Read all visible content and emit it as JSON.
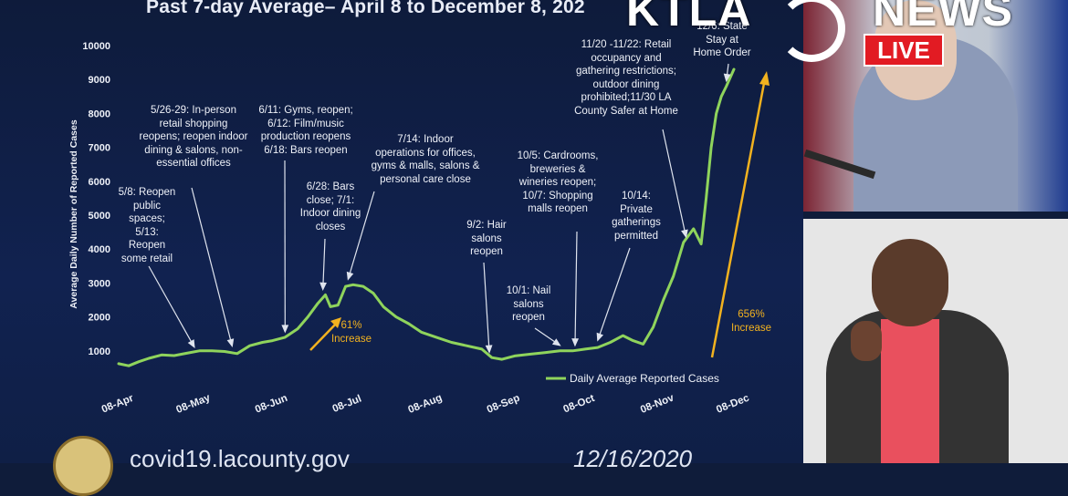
{
  "slide": {
    "title": "Past 7-day Average– April 8 to December 8, 202",
    "footer_url": "covid19.lacounty.gov",
    "footer_date": "12/16/2020"
  },
  "broadcast": {
    "brand": "KTLA",
    "brand_suffix": "NEWS",
    "live": "LIVE"
  },
  "colors": {
    "series": "#8fd45c",
    "increase": "#f2b21f",
    "axis_text": "#eef1f8",
    "live_bg": "#e21b23"
  },
  "annotations": [
    {
      "id": "may8",
      "text": "5/8: Reopen\npublic\nspaces;\n5/13:\nReopen\nsome retail"
    },
    {
      "id": "may26",
      "text": "5/26-29: In-person\nretail shopping\nreopens; reopen indoor\ndining & salons, non-\nessential offices"
    },
    {
      "id": "jun11",
      "text": "6/11: Gyms, reopen;\n6/12: Film/music\nproduction reopens\n6/18: Bars reopen"
    },
    {
      "id": "jun28",
      "text": "6/28: Bars\nclose; 7/1:\nIndoor dining\ncloses"
    },
    {
      "id": "jul14",
      "text": "7/14: Indoor\noperations for offices,\ngyms & malls, salons &\npersonal care close"
    },
    {
      "id": "sep2",
      "text": "9/2: Hair\nsalons\nreopen"
    },
    {
      "id": "oct1",
      "text": "10/1: Nail\nsalons\nreopen"
    },
    {
      "id": "oct5",
      "text": "10/5: Cardrooms,\nbreweries &\nwineries reopen;\n10/7: Shopping\nmalls reopen"
    },
    {
      "id": "oct14",
      "text": "10/14:\nPrivate\ngatherings\npermitted"
    },
    {
      "id": "nov20",
      "text": "11/20 -11/22: Retail\noccupancy and\ngathering restrictions;\noutdoor dining\nprohibited;11/30  LA\nCounty Safer at Home"
    },
    {
      "id": "dec6",
      "text": "12/6:  State\nStay at\nHome Order"
    }
  ],
  "increases": [
    {
      "id": "inc61",
      "text": "61%\nIncrease"
    },
    {
      "id": "inc656",
      "text": "656%\nIncrease"
    }
  ],
  "chart_data": {
    "type": "line",
    "title": "",
    "xlabel": "",
    "ylabel": "Average Daily Number of Reported Cases",
    "ylim": [
      0,
      10000
    ],
    "yticks": [
      1000,
      2000,
      3000,
      4000,
      5000,
      6000,
      7000,
      8000,
      9000,
      10000
    ],
    "ytick_labels": [
      "1000",
      "2000",
      "3000",
      "4000",
      "5000",
      "6000",
      "7000",
      "8000",
      "9000",
      "10000"
    ],
    "xrange": [
      "2020-04-08",
      "2020-12-08"
    ],
    "xticks": [
      "2020-04-08",
      "2020-05-08",
      "2020-06-08",
      "2020-07-08",
      "2020-08-08",
      "2020-09-08",
      "2020-10-08",
      "2020-11-08",
      "2020-12-08"
    ],
    "xtick_labels": [
      "08-Apr",
      "08-May",
      "08-Jun",
      "08-Jul",
      "08-Aug",
      "08-Sep",
      "08-Oct",
      "08-Nov",
      "08-Dec"
    ],
    "legend": {
      "placement": "bottom-right",
      "entries": [
        "Daily Average Reported Cases"
      ]
    },
    "series": [
      {
        "name": "Daily Average Reported Cases",
        "x": [
          "2020-04-08",
          "2020-04-12",
          "2020-04-16",
          "2020-04-20",
          "2020-04-25",
          "2020-04-30",
          "2020-05-05",
          "2020-05-10",
          "2020-05-15",
          "2020-05-20",
          "2020-05-25",
          "2020-05-30",
          "2020-06-04",
          "2020-06-08",
          "2020-06-13",
          "2020-06-18",
          "2020-06-22",
          "2020-06-26",
          "2020-06-29",
          "2020-07-01",
          "2020-07-04",
          "2020-07-07",
          "2020-07-10",
          "2020-07-14",
          "2020-07-18",
          "2020-07-22",
          "2020-07-27",
          "2020-08-01",
          "2020-08-06",
          "2020-08-12",
          "2020-08-18",
          "2020-08-24",
          "2020-08-30",
          "2020-09-03",
          "2020-09-07",
          "2020-09-12",
          "2020-09-18",
          "2020-09-24",
          "2020-09-30",
          "2020-10-05",
          "2020-10-10",
          "2020-10-15",
          "2020-10-20",
          "2020-10-25",
          "2020-10-29",
          "2020-11-02",
          "2020-11-06",
          "2020-11-10",
          "2020-11-14",
          "2020-11-18",
          "2020-11-22",
          "2020-11-25",
          "2020-11-27",
          "2020-11-29",
          "2020-12-01",
          "2020-12-03",
          "2020-12-05",
          "2020-12-08"
        ],
        "y": [
          620,
          560,
          680,
          780,
          880,
          860,
          930,
          1000,
          1000,
          980,
          920,
          1150,
          1250,
          1300,
          1400,
          1650,
          2000,
          2400,
          2650,
          2300,
          2350,
          2900,
          2950,
          2900,
          2700,
          2300,
          2000,
          1800,
          1550,
          1400,
          1250,
          1150,
          1050,
          800,
          750,
          850,
          900,
          950,
          1000,
          1000,
          1050,
          1100,
          1250,
          1450,
          1300,
          1200,
          1700,
          2500,
          3200,
          4200,
          4600,
          4150,
          5500,
          7000,
          8000,
          8500,
          8800,
          9300
        ]
      }
    ]
  }
}
